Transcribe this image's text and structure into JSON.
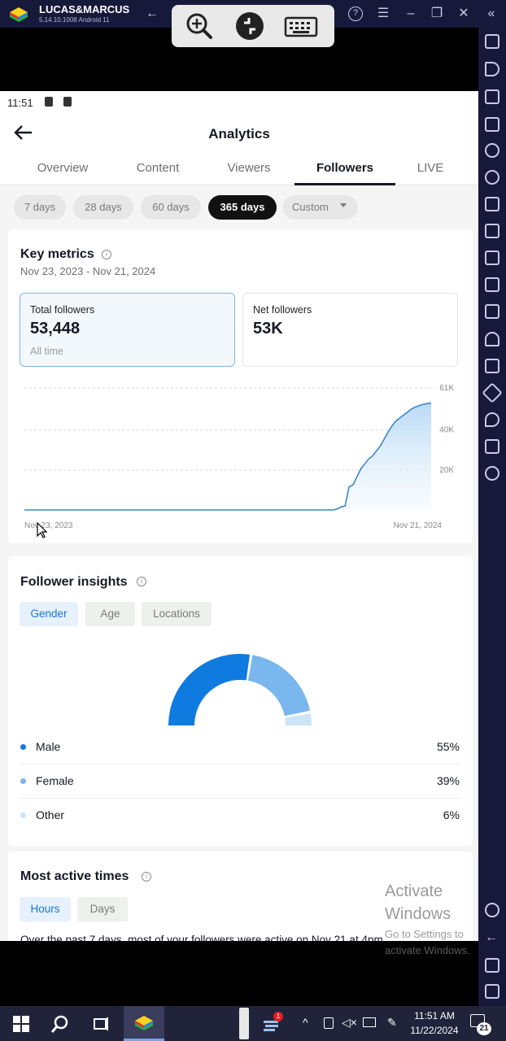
{
  "emulator": {
    "app_name": "LUCAS&MARCUS",
    "version": "5.14.10.1008  Android 11"
  },
  "status": {
    "time": "11:51"
  },
  "header": {
    "title": "Analytics",
    "tabs": [
      "Overview",
      "Content",
      "Viewers",
      "Followers",
      "LIVE"
    ],
    "active_tab": "Followers"
  },
  "range_chips": [
    "7 days",
    "28 days",
    "60 days",
    "365 days",
    "Custom"
  ],
  "active_range": "365 days",
  "key_metrics": {
    "title": "Key metrics",
    "date_range": "Nov 23, 2023 - Nov 21, 2024",
    "total": {
      "label": "Total followers",
      "value": "53,448",
      "sub": "All time"
    },
    "net": {
      "label": "Net followers",
      "value": "53K"
    }
  },
  "chart_data": {
    "type": "area",
    "x_start_label": "Nov 23, 2023",
    "x_end_label": "Nov 21, 2024",
    "y_tick_labels": [
      "61K",
      "40K",
      "20K"
    ],
    "y_ticks": [
      61000,
      40000,
      20000
    ],
    "ylim": [
      0,
      61000
    ],
    "values": [
      0,
      0,
      0,
      0,
      0,
      0,
      0,
      0,
      0,
      0,
      0,
      0,
      0,
      0,
      0,
      0,
      0,
      0,
      0,
      0,
      0,
      0,
      0,
      0,
      0,
      0,
      0,
      0,
      0,
      0,
      0,
      0,
      0,
      0,
      0,
      0,
      0,
      0,
      0,
      0,
      0,
      0,
      0,
      0,
      0,
      0,
      0,
      0,
      0,
      0,
      0,
      0,
      0,
      0,
      0,
      0,
      0,
      0,
      0,
      0,
      0,
      0,
      0,
      0,
      0,
      0,
      0,
      0,
      0,
      0,
      0,
      0,
      0,
      0,
      0,
      0,
      0,
      0,
      0,
      0,
      500,
      1500,
      2000,
      11500,
      12500,
      16500,
      20500,
      23000,
      25500,
      27000,
      29500,
      32000,
      35500,
      39000,
      42000,
      44500,
      46000,
      47500,
      49000,
      50500,
      51500,
      52200,
      52800,
      53200,
      53448
    ],
    "grid": true
  },
  "follower_insights": {
    "title": "Follower insights",
    "tabs": [
      "Gender",
      "Age",
      "Locations"
    ],
    "active_tab": "Gender",
    "segments": [
      {
        "label": "Male",
        "pct_label": "55%",
        "value": 55,
        "color": "#0f7ae0"
      },
      {
        "label": "Female",
        "pct_label": "39%",
        "value": 39,
        "color": "#79b7ee"
      },
      {
        "label": "Other",
        "pct_label": "6%",
        "value": 6,
        "color": "#cde4f8"
      }
    ]
  },
  "active_times": {
    "title": "Most active times",
    "tabs": [
      "Hours",
      "Days"
    ],
    "active_tab": "Hours",
    "description": "Over the past 7 days, most of your followers were active on Nov 21 at 4pm"
  },
  "watermark": {
    "line1": "Activate",
    "line2": "Windows",
    "line3": "Go to Settings to",
    "line4": "activate Windows."
  },
  "taskbar": {
    "time": "11:51 AM",
    "date": "11/22/2024",
    "notification_count": "21",
    "badge": "1"
  }
}
